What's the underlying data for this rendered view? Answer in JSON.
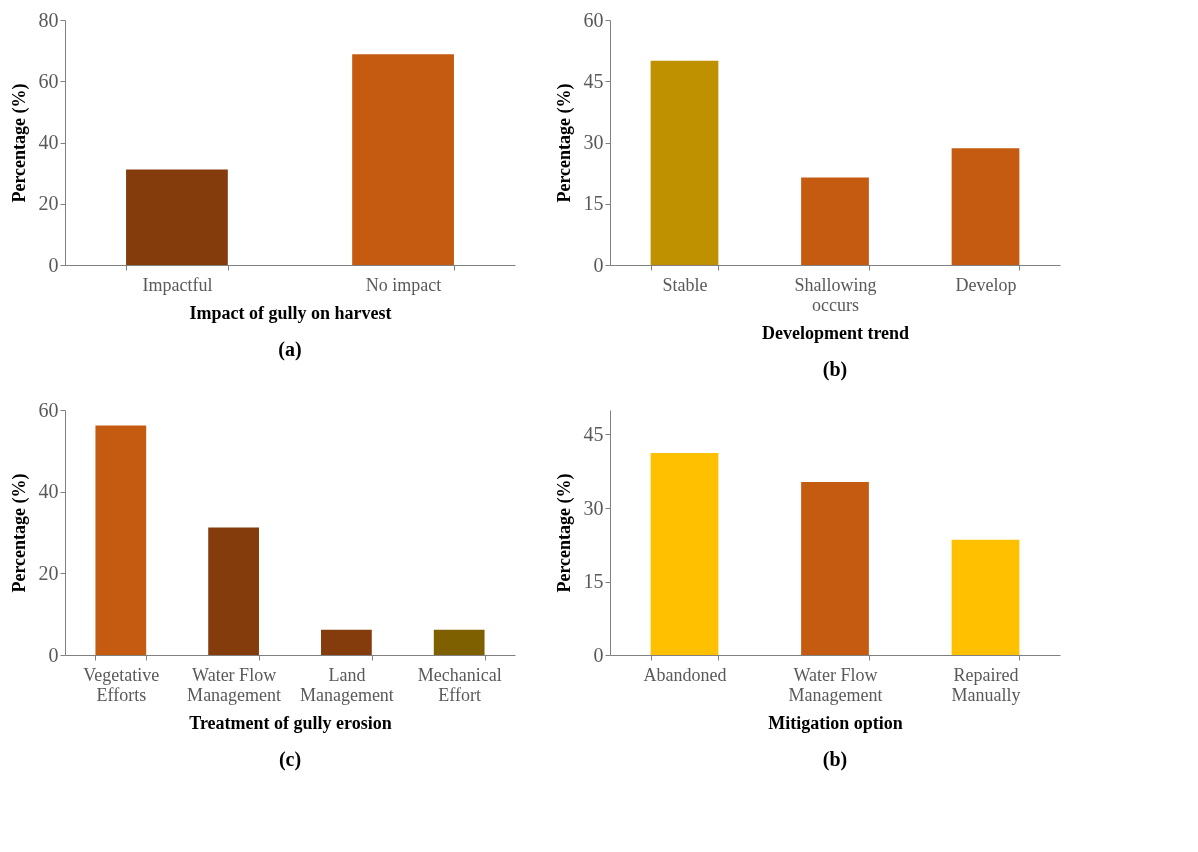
{
  "chart_data": [
    {
      "type": "bar",
      "xlabel": "Impact of gully on harvest",
      "ylabel": "Percentage (%)",
      "categories": [
        "Impactful",
        "No impact"
      ],
      "values": [
        31.2,
        68.8
      ],
      "colors": [
        "#843c0c",
        "#c55a11"
      ],
      "ylim": [
        0,
        80
      ],
      "yticks": [
        0,
        20,
        40,
        60,
        80
      ],
      "annotations": [
        "(a)"
      ]
    },
    {
      "type": "bar",
      "xlabel": "Development trend",
      "ylabel": "Percentage (%)",
      "categories": [
        "Stable",
        "Shallowing occurs",
        "Develop"
      ],
      "values": [
        50,
        21.4,
        28.6
      ],
      "colors": [
        "#bf9000",
        "#c55a11",
        "#c55a11"
      ],
      "ylim": [
        0,
        60
      ],
      "yticks": [
        0,
        15,
        30,
        45,
        60
      ],
      "annotations": [
        "(b)"
      ]
    },
    {
      "type": "bar",
      "xlabel": "Treatment of gully erosion",
      "ylabel": "Percentage (%)",
      "categories": [
        "Vegetative Efforts",
        "Water Flow Management",
        "Land Management",
        "Mechanical Effort"
      ],
      "values": [
        56.2,
        31.2,
        6.2,
        6.2
      ],
      "colors": [
        "#c55a11",
        "#843c0c",
        "#843c0c",
        "#7f6000"
      ],
      "ylim": [
        0,
        60
      ],
      "yticks": [
        0,
        20,
        40,
        60
      ],
      "annotations": [
        "(c)"
      ]
    },
    {
      "type": "bar",
      "xlabel": "Mitigation option",
      "ylabel": "Percentage (%)",
      "categories": [
        "Abandoned",
        "Water Flow Management",
        "Repaired Manually"
      ],
      "values": [
        41.2,
        35.3,
        23.5
      ],
      "colors": [
        "#ffc000",
        "#c55a11",
        "#ffc000"
      ],
      "ylim": [
        0,
        50
      ],
      "yticks": [
        0,
        15,
        30,
        45
      ],
      "annotations": [
        "(b)"
      ]
    }
  ]
}
